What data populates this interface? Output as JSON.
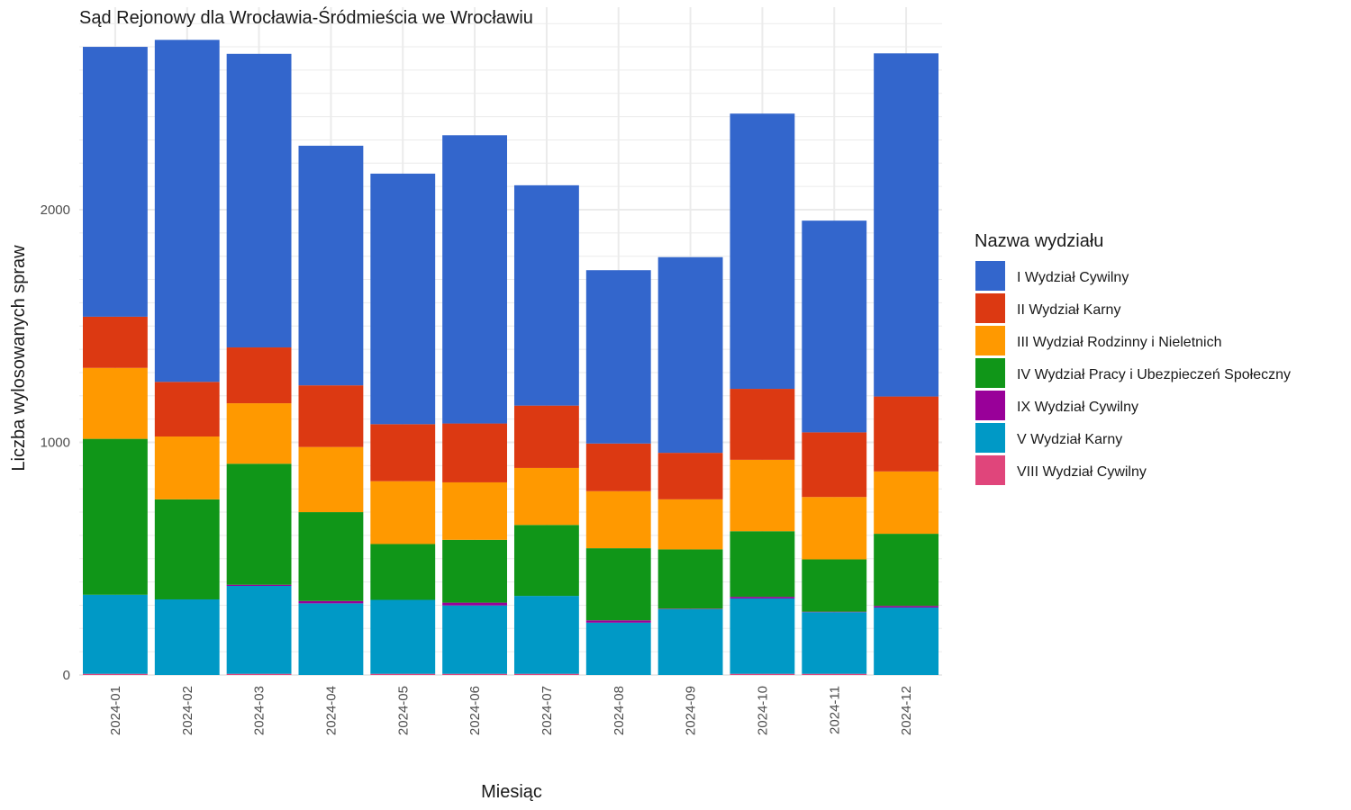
{
  "chart_data": {
    "type": "bar",
    "stacked": true,
    "title": "Sąd Rejonowy dla Wrocławia-Śródmieścia we Wrocławiu",
    "xlabel": "Miesiąc",
    "ylabel": "Liczba wylosowanych spraw",
    "ylim": [
      0,
      2800
    ],
    "yticks": [
      0,
      1000,
      2000
    ],
    "grid": true,
    "legend": {
      "title": "Nazwa wydziału",
      "position": "right"
    },
    "categories": [
      "2024-01",
      "2024-02",
      "2024-03",
      "2024-04",
      "2024-05",
      "2024-06",
      "2024-07",
      "2024-08",
      "2024-09",
      "2024-10",
      "2024-11",
      "2024-12"
    ],
    "series": [
      {
        "name": "VIII Wydział Cywilny",
        "color": "#e0457b",
        "values": [
          5,
          0,
          5,
          0,
          5,
          5,
          5,
          0,
          0,
          5,
          5,
          0
        ]
      },
      {
        "name": "V Wydział Karny",
        "color": "#0099c6",
        "values": [
          340,
          325,
          378,
          308,
          318,
          294,
          335,
          225,
          283,
          324,
          265,
          290
        ]
      },
      {
        "name": "IX Wydział Cywilny",
        "color": "#990099",
        "values": [
          0,
          0,
          5,
          10,
          0,
          12,
          0,
          10,
          2,
          7,
          2,
          7
        ]
      },
      {
        "name": "IV Wydział Pracy i Ubezpieczeń Społeczny",
        "color": "#109618",
        "values": [
          670,
          430,
          520,
          382,
          240,
          270,
          305,
          310,
          255,
          282,
          225,
          310
        ]
      },
      {
        "name": "III Wydział Rodzinny i Nieletnich",
        "color": "#ff9900",
        "values": [
          305,
          270,
          260,
          280,
          270,
          247,
          245,
          245,
          215,
          307,
          268,
          268
        ]
      },
      {
        "name": "II Wydział Karny",
        "color": "#dc3912",
        "values": [
          220,
          235,
          240,
          265,
          245,
          253,
          268,
          205,
          200,
          305,
          278,
          322
        ]
      },
      {
        "name": "I Wydział Cywilny",
        "color": "#3366cc",
        "values": [
          1160,
          1470,
          1262,
          1030,
          1077,
          1239,
          947,
          745,
          841,
          1183,
          910,
          1475
        ]
      }
    ],
    "legend_order": [
      "I Wydział Cywilny",
      "II Wydział Karny",
      "III Wydział Rodzinny i Nieletnich",
      "IV Wydział Pracy i Ubezpieczeń Społeczny",
      "IX Wydział Cywilny",
      "V Wydział Karny",
      "VIII Wydział Cywilny"
    ]
  }
}
